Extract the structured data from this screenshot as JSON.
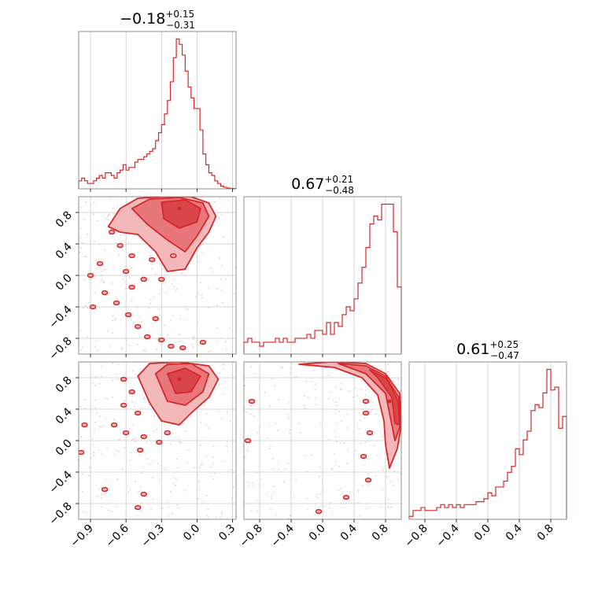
{
  "figure": {
    "kind": "corner plot"
  },
  "colors": {
    "main": "#d62728",
    "fill_light": "#f3b8ba",
    "fill_mid": "#e8777c",
    "fill_dark": "#d8454b",
    "grid": "#c8c8c8",
    "frame": "#808080"
  },
  "titles": [
    {
      "value": "−0.18",
      "plus": "+0.15",
      "minus": "−0.31"
    },
    {
      "value": "0.67",
      "plus": "+0.21",
      "minus": "−0.48"
    },
    {
      "value": "0.61",
      "plus": "+0.25",
      "minus": "−0.47"
    }
  ],
  "chart_data": [
    {
      "type": "histogram",
      "panel": "p0",
      "xlim": [
        -1.0,
        0.33
      ],
      "xticks": [
        -0.9,
        -0.6,
        -0.3,
        0.0,
        0.3
      ],
      "xticklabels": [
        "−0.9",
        "−0.6",
        "−0.3",
        "0.0",
        "0.3"
      ],
      "bins": [
        [
          -1.0,
          3
        ],
        [
          -0.975,
          4
        ],
        [
          -0.95,
          3
        ],
        [
          -0.925,
          2
        ],
        [
          -0.9,
          2
        ],
        [
          -0.875,
          3
        ],
        [
          -0.85,
          4
        ],
        [
          -0.825,
          5
        ],
        [
          -0.8,
          4
        ],
        [
          -0.775,
          6
        ],
        [
          -0.75,
          6
        ],
        [
          -0.725,
          5
        ],
        [
          -0.7,
          4
        ],
        [
          -0.675,
          6
        ],
        [
          -0.65,
          7
        ],
        [
          -0.625,
          9
        ],
        [
          -0.6,
          7
        ],
        [
          -0.575,
          8
        ],
        [
          -0.55,
          8
        ],
        [
          -0.525,
          10
        ],
        [
          -0.5,
          11
        ],
        [
          -0.475,
          11
        ],
        [
          -0.45,
          12
        ],
        [
          -0.425,
          13
        ],
        [
          -0.4,
          14
        ],
        [
          -0.375,
          15
        ],
        [
          -0.35,
          18
        ],
        [
          -0.325,
          21
        ],
        [
          -0.3,
          24
        ],
        [
          -0.275,
          28
        ],
        [
          -0.25,
          33
        ],
        [
          -0.225,
          40
        ],
        [
          -0.2,
          49
        ],
        [
          -0.175,
          56
        ],
        [
          -0.15,
          54
        ],
        [
          -0.125,
          50
        ],
        [
          -0.1,
          44
        ],
        [
          -0.075,
          38
        ],
        [
          -0.05,
          34
        ],
        [
          -0.025,
          30
        ],
        [
          0.0,
          30
        ],
        [
          0.025,
          22
        ],
        [
          0.05,
          13
        ],
        [
          0.075,
          9
        ],
        [
          0.1,
          6
        ],
        [
          0.125,
          5
        ],
        [
          0.15,
          3
        ],
        [
          0.175,
          2
        ],
        [
          0.2,
          1
        ],
        [
          0.225,
          0.6
        ],
        [
          0.25,
          0.3
        ],
        [
          0.275,
          0.2
        ],
        [
          0.3,
          0.1
        ]
      ]
    },
    {
      "type": "histogram",
      "panel": "p4",
      "xlim": [
        -1.0,
        1.0
      ],
      "xticks": [
        -0.8,
        -0.4,
        0.0,
        0.4,
        0.8
      ],
      "bins": [
        [
          -1.0,
          3
        ],
        [
          -0.95,
          4
        ],
        [
          -0.9,
          3
        ],
        [
          -0.85,
          3
        ],
        [
          -0.8,
          2
        ],
        [
          -0.75,
          3
        ],
        [
          -0.7,
          3
        ],
        [
          -0.65,
          3
        ],
        [
          -0.6,
          4
        ],
        [
          -0.55,
          3
        ],
        [
          -0.5,
          4
        ],
        [
          -0.45,
          3
        ],
        [
          -0.4,
          3
        ],
        [
          -0.35,
          4
        ],
        [
          -0.3,
          4
        ],
        [
          -0.25,
          4
        ],
        [
          -0.2,
          5
        ],
        [
          -0.15,
          4
        ],
        [
          -0.1,
          6
        ],
        [
          -0.05,
          6
        ],
        [
          0.0,
          5
        ],
        [
          0.05,
          8
        ],
        [
          0.1,
          5
        ],
        [
          0.15,
          8
        ],
        [
          0.2,
          7
        ],
        [
          0.25,
          10
        ],
        [
          0.3,
          12
        ],
        [
          0.35,
          11
        ],
        [
          0.4,
          14
        ],
        [
          0.45,
          18
        ],
        [
          0.5,
          22
        ],
        [
          0.55,
          27
        ],
        [
          0.6,
          33
        ],
        [
          0.65,
          35
        ],
        [
          0.7,
          34
        ],
        [
          0.75,
          38
        ],
        [
          0.8,
          38
        ],
        [
          0.85,
          38
        ],
        [
          0.9,
          31
        ],
        [
          0.95,
          17
        ]
      ]
    },
    {
      "type": "histogram",
      "panel": "p8",
      "xlim": [
        -1.0,
        1.0
      ],
      "xticks": [
        -0.8,
        -0.4,
        0.0,
        0.4,
        0.8
      ],
      "xticklabels": [
        "−0.8",
        "−0.4",
        "0.0",
        "0.4",
        "0.8"
      ],
      "bins": [
        [
          -1.0,
          1
        ],
        [
          -0.95,
          3
        ],
        [
          -0.9,
          3
        ],
        [
          -0.85,
          4
        ],
        [
          -0.8,
          3
        ],
        [
          -0.75,
          3
        ],
        [
          -0.7,
          3
        ],
        [
          -0.65,
          4
        ],
        [
          -0.6,
          5
        ],
        [
          -0.55,
          4
        ],
        [
          -0.5,
          5
        ],
        [
          -0.45,
          4
        ],
        [
          -0.4,
          5
        ],
        [
          -0.35,
          4
        ],
        [
          -0.3,
          5
        ],
        [
          -0.25,
          5
        ],
        [
          -0.2,
          5
        ],
        [
          -0.15,
          6
        ],
        [
          -0.1,
          6
        ],
        [
          -0.05,
          7
        ],
        [
          0.0,
          9
        ],
        [
          0.05,
          8
        ],
        [
          0.1,
          11
        ],
        [
          0.15,
          11
        ],
        [
          0.2,
          13
        ],
        [
          0.25,
          16
        ],
        [
          0.3,
          18
        ],
        [
          0.35,
          24
        ],
        [
          0.4,
          22
        ],
        [
          0.45,
          27
        ],
        [
          0.5,
          30
        ],
        [
          0.55,
          37
        ],
        [
          0.6,
          39
        ],
        [
          0.65,
          38
        ],
        [
          0.7,
          43
        ],
        [
          0.75,
          51
        ],
        [
          0.8,
          44
        ],
        [
          0.85,
          45
        ],
        [
          0.9,
          31
        ],
        [
          0.95,
          35
        ]
      ]
    },
    {
      "type": "contour",
      "panel": "p3",
      "xlim": [
        -1.0,
        0.33
      ],
      "ylim": [
        -1.0,
        1.0
      ],
      "yticks": [
        -0.8,
        -0.4,
        0.0,
        0.4,
        0.8
      ],
      "yticklabels": [
        "−0.8",
        "−0.4",
        "0.0",
        "0.4",
        "0.8"
      ],
      "peak": [
        -0.15,
        0.85
      ],
      "regions": [
        {
          "level": 1,
          "points": [
            [
              -0.75,
              0.62
            ],
            [
              -0.65,
              0.85
            ],
            [
              -0.5,
              0.98
            ],
            [
              -0.3,
              1.0
            ],
            [
              -0.05,
              1.0
            ],
            [
              0.1,
              0.92
            ],
            [
              0.16,
              0.75
            ],
            [
              0.1,
              0.55
            ],
            [
              0.0,
              0.35
            ],
            [
              -0.1,
              0.08
            ],
            [
              -0.25,
              0.05
            ],
            [
              -0.35,
              0.3
            ],
            [
              -0.5,
              0.52
            ],
            [
              -0.65,
              0.55
            ]
          ]
        },
        {
          "level": 2,
          "points": [
            [
              -0.55,
              0.85
            ],
            [
              -0.4,
              0.97
            ],
            [
              -0.15,
              0.99
            ],
            [
              0.05,
              0.92
            ],
            [
              0.1,
              0.75
            ],
            [
              0.0,
              0.5
            ],
            [
              -0.1,
              0.3
            ],
            [
              -0.25,
              0.45
            ],
            [
              -0.42,
              0.65
            ]
          ]
        },
        {
          "level": 3,
          "points": [
            [
              -0.3,
              0.93
            ],
            [
              -0.1,
              0.96
            ],
            [
              0.03,
              0.85
            ],
            [
              0.0,
              0.68
            ],
            [
              -0.15,
              0.6
            ],
            [
              -0.28,
              0.72
            ]
          ]
        }
      ],
      "islands": [
        [
          -0.72,
          0.55
        ],
        [
          -0.65,
          0.38
        ],
        [
          -0.55,
          0.25
        ],
        [
          -0.6,
          0.05
        ],
        [
          -0.45,
          -0.05
        ],
        [
          -0.38,
          0.2
        ],
        [
          -0.82,
          0.15
        ],
        [
          -0.9,
          0.0
        ],
        [
          -0.78,
          -0.22
        ],
        [
          -0.68,
          -0.35
        ],
        [
          -0.58,
          -0.5
        ],
        [
          -0.5,
          -0.65
        ],
        [
          -0.42,
          -0.78
        ],
        [
          -0.3,
          -0.82
        ],
        [
          -0.22,
          -0.9
        ],
        [
          -0.55,
          -0.15
        ],
        [
          -0.3,
          -0.05
        ],
        [
          -0.2,
          0.25
        ],
        [
          -0.12,
          -0.92
        ],
        [
          0.05,
          -0.85
        ],
        [
          -0.88,
          -0.4
        ],
        [
          -0.35,
          -0.55
        ]
      ]
    },
    {
      "type": "contour",
      "panel": "p6",
      "xlim": [
        -1.0,
        0.33
      ],
      "ylim": [
        -1.0,
        1.0
      ],
      "peak": [
        -0.15,
        0.78
      ],
      "regions": [
        {
          "level": 1,
          "points": [
            [
              -0.5,
              0.82
            ],
            [
              -0.4,
              0.98
            ],
            [
              -0.15,
              1.0
            ],
            [
              0.1,
              0.95
            ],
            [
              0.18,
              0.78
            ],
            [
              0.1,
              0.55
            ],
            [
              -0.05,
              0.35
            ],
            [
              -0.15,
              0.2
            ],
            [
              -0.3,
              0.25
            ],
            [
              -0.4,
              0.48
            ]
          ]
        },
        {
          "level": 2,
          "points": [
            [
              -0.35,
              0.85
            ],
            [
              -0.25,
              0.97
            ],
            [
              -0.05,
              0.98
            ],
            [
              0.1,
              0.85
            ],
            [
              0.05,
              0.62
            ],
            [
              -0.1,
              0.45
            ],
            [
              -0.25,
              0.5
            ]
          ]
        },
        {
          "level": 3,
          "points": [
            [
              -0.25,
              0.85
            ],
            [
              -0.1,
              0.92
            ],
            [
              0.03,
              0.82
            ],
            [
              -0.05,
              0.62
            ],
            [
              -0.18,
              0.6
            ]
          ]
        }
      ],
      "islands": [
        [
          -0.62,
          0.78
        ],
        [
          -0.55,
          0.62
        ],
        [
          -0.62,
          0.45
        ],
        [
          -0.5,
          0.35
        ],
        [
          -0.7,
          0.2
        ],
        [
          -0.95,
          0.2
        ],
        [
          -0.98,
          -0.15
        ],
        [
          -0.45,
          0.05
        ],
        [
          -0.32,
          -0.02
        ],
        [
          -0.25,
          0.1
        ],
        [
          -0.78,
          -0.62
        ],
        [
          -0.45,
          -0.68
        ],
        [
          -0.5,
          -0.85
        ],
        [
          -0.48,
          -0.12
        ],
        [
          -0.6,
          0.1
        ]
      ]
    },
    {
      "type": "contour",
      "panel": "p7",
      "xlim": [
        -1.0,
        1.0
      ],
      "ylim": [
        -1.0,
        1.0
      ],
      "peak": [
        0.85,
        0.5
      ],
      "regions": [
        {
          "level": 1,
          "points": [
            [
              -0.3,
              0.97
            ],
            [
              0.1,
              1.0
            ],
            [
              0.55,
              0.98
            ],
            [
              0.8,
              0.85
            ],
            [
              0.98,
              0.6
            ],
            [
              1.0,
              0.2
            ],
            [
              0.95,
              -0.1
            ],
            [
              0.85,
              -0.35
            ],
            [
              0.8,
              -0.05
            ],
            [
              0.78,
              0.25
            ],
            [
              0.7,
              0.58
            ],
            [
              0.5,
              0.8
            ],
            [
              0.15,
              0.93
            ]
          ]
        },
        {
          "level": 2,
          "points": [
            [
              0.2,
              0.98
            ],
            [
              0.55,
              0.95
            ],
            [
              0.8,
              0.82
            ],
            [
              0.97,
              0.55
            ],
            [
              0.99,
              0.2
            ],
            [
              0.92,
              0.0
            ],
            [
              0.87,
              0.25
            ],
            [
              0.8,
              0.6
            ],
            [
              0.55,
              0.85
            ]
          ]
        },
        {
          "level": 3,
          "points": [
            [
              0.6,
              0.9
            ],
            [
              0.82,
              0.78
            ],
            [
              0.96,
              0.5
            ],
            [
              0.98,
              0.2
            ],
            [
              0.92,
              0.22
            ],
            [
              0.88,
              0.55
            ],
            [
              0.7,
              0.8
            ]
          ]
        }
      ],
      "islands": [
        [
          -0.9,
          0.5
        ],
        [
          -0.95,
          0.0
        ],
        [
          0.55,
          0.5
        ],
        [
          0.55,
          0.35
        ],
        [
          0.6,
          0.1
        ],
        [
          0.52,
          -0.2
        ],
        [
          0.58,
          -0.5
        ],
        [
          0.3,
          -0.72
        ],
        [
          -0.05,
          -0.9
        ]
      ]
    }
  ]
}
